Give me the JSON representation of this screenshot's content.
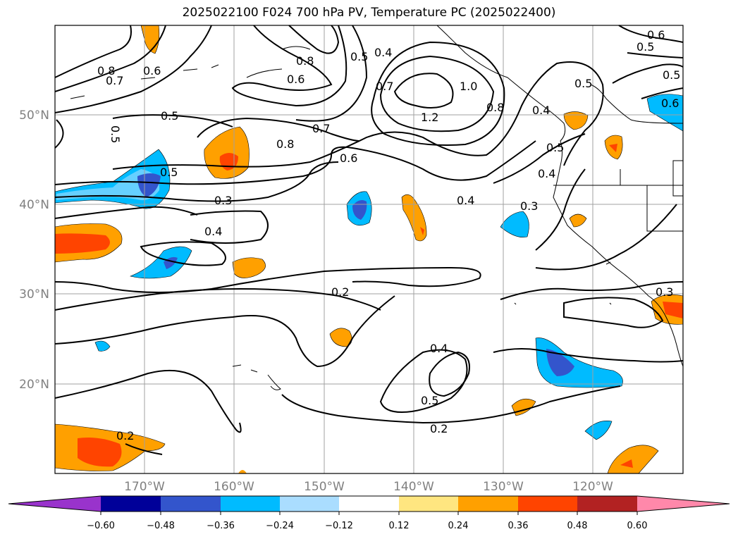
{
  "title": "2025022100 F024 700 hPa PV, Temperature PC (2025022400)",
  "map": {
    "lat_labels": [
      "50°N",
      "40°N",
      "30°N",
      "20°N"
    ],
    "lon_labels": [
      "170°W",
      "160°W",
      "150°W",
      "140°W",
      "130°W",
      "120°W"
    ],
    "contour_labels": [
      "0.8",
      "0.7",
      "0.6",
      "0.8",
      "0.6",
      "0.5",
      "0.4",
      "0.7",
      "1.0",
      "0.8",
      "1.2",
      "0.4",
      "0.6",
      "0.5",
      "0.6",
      "0.5",
      "0.5",
      "0.5",
      "0.7",
      "0.8",
      "0.6",
      "0.5",
      "0.5",
      "0.4",
      "0.3",
      "0.3",
      "0.4",
      "0.4",
      "0.2",
      "0.3",
      "0.4",
      "0.5",
      "0.2",
      "0.2"
    ],
    "grid_lines": true
  },
  "colorbar": {
    "tick_labels": [
      "−0.60",
      "−0.48",
      "−0.36",
      "−0.24",
      "−0.12",
      "0.12",
      "0.24",
      "0.36",
      "0.48",
      "0.60"
    ],
    "colors": [
      "#9933cc",
      "#000099",
      "#3355cc",
      "#00bbff",
      "#aaddff",
      "#ffffff",
      "#ffe680",
      "#ffa000",
      "#ff4400",
      "#b22222",
      "#ff88aa"
    ],
    "extend": "both"
  }
}
